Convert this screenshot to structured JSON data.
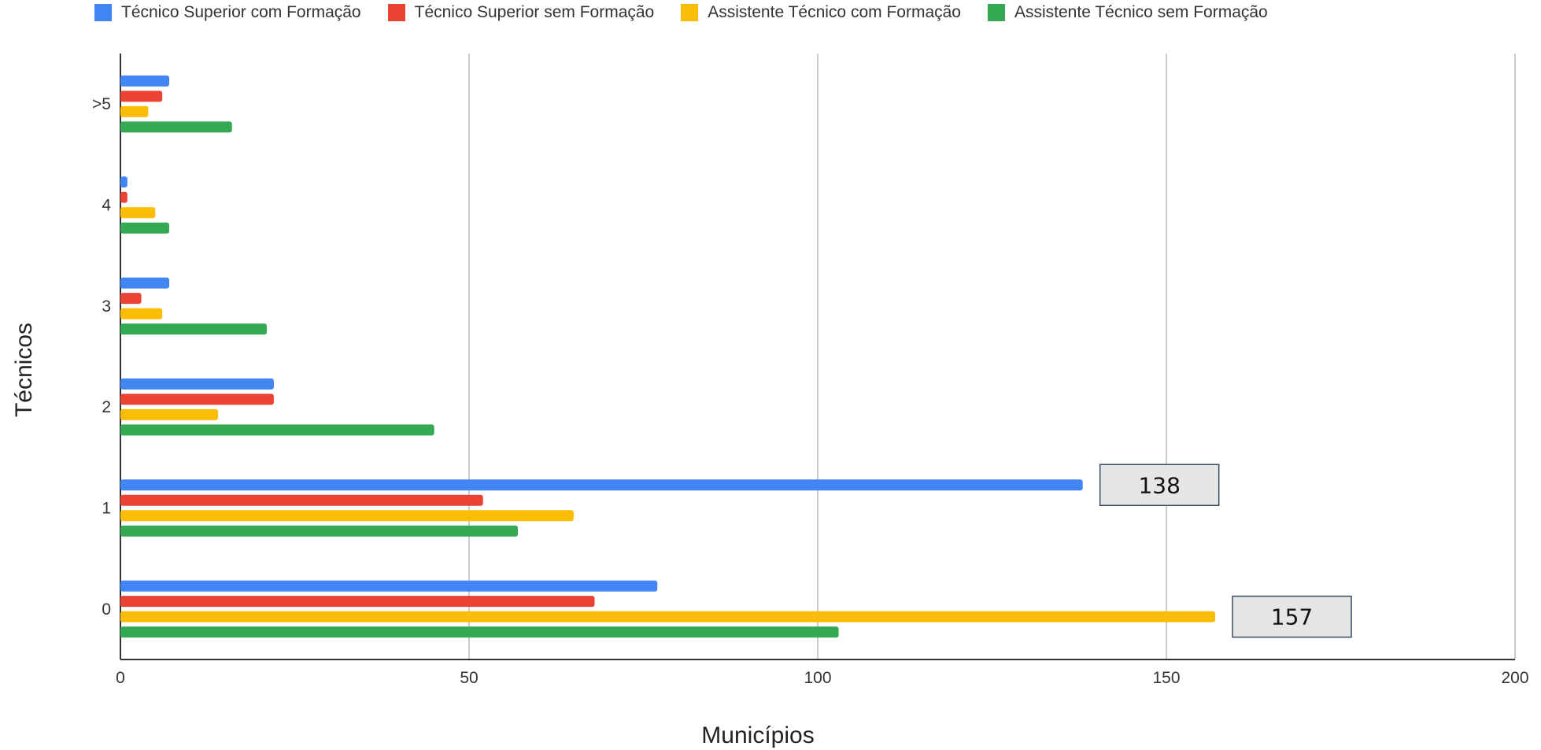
{
  "chart_data": {
    "type": "bar",
    "orientation": "horizontal",
    "categories": [
      "0",
      "1",
      "2",
      "3",
      "4",
      ">5"
    ],
    "series": [
      {
        "name": "Técnico Superior com Formação",
        "color": "#4285F4",
        "values": [
          77,
          138,
          22,
          7,
          1,
          7
        ]
      },
      {
        "name": "Técnico Superior sem Formação",
        "color": "#EA4335",
        "values": [
          68,
          52,
          22,
          3,
          1,
          6
        ]
      },
      {
        "name": "Assistente Técnico com Formação",
        "color": "#FBBC04",
        "values": [
          157,
          65,
          14,
          6,
          5,
          4
        ]
      },
      {
        "name": "Assistente Técnico sem Formação",
        "color": "#34A853",
        "values": [
          103,
          57,
          45,
          21,
          7,
          16
        ]
      }
    ],
    "xlabel": "Municípios",
    "ylabel": "Técnicos",
    "xlim": [
      0,
      200
    ],
    "xticks": [
      "0",
      "50",
      "100",
      "150",
      "200"
    ],
    "grid": "vertical",
    "legend_position": "top",
    "annotations": [
      {
        "text": "138",
        "category": "1",
        "series": "Técnico Superior com Formação"
      },
      {
        "text": "157",
        "category": "0",
        "series": "Assistente Técnico com Formação"
      }
    ]
  }
}
